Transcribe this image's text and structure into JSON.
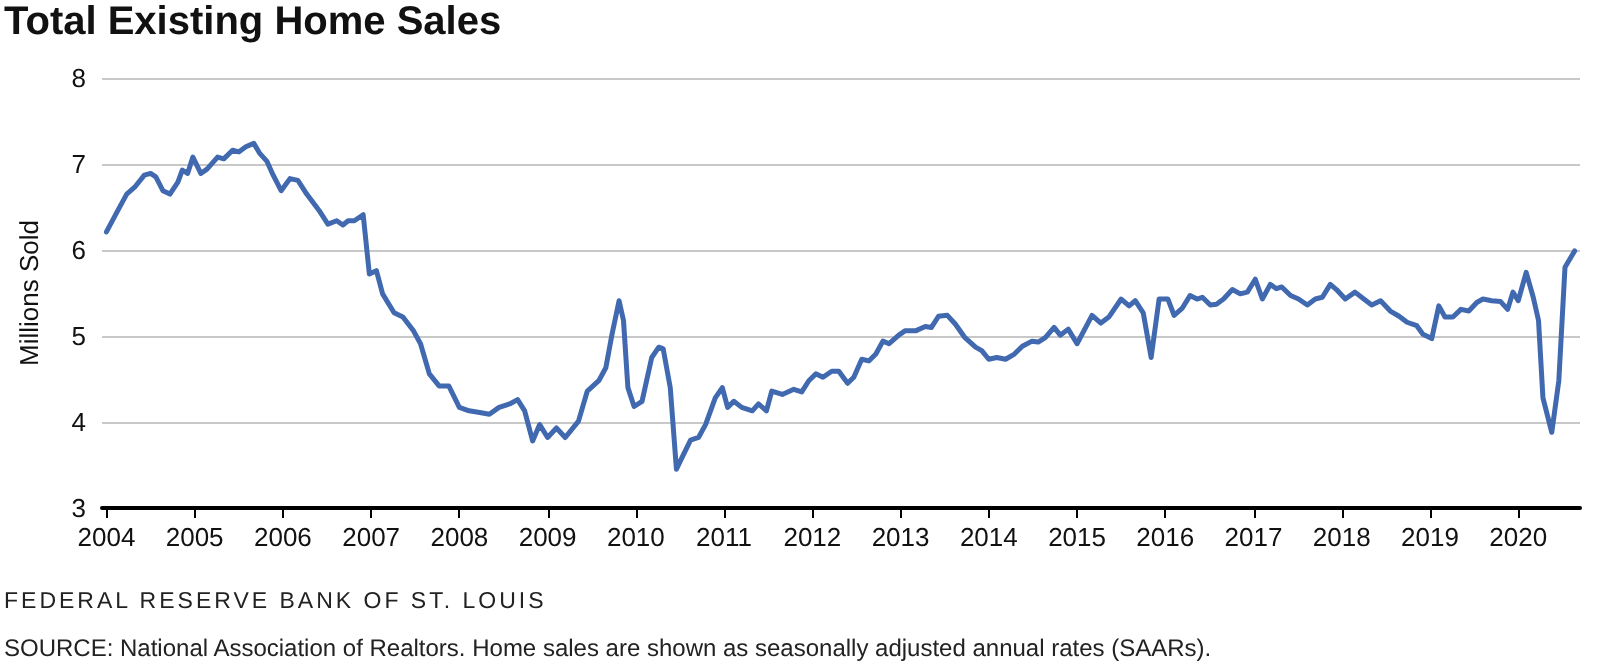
{
  "chart_data": {
    "type": "line",
    "title": "Total Existing Home Sales",
    "ylabel": "Millions Sold",
    "annotations": [
      "FEDERAL RESERVE BANK OF ST. LOUIS",
      "SOURCE: National Association of Realtors. Home sales are shown as seasonally adjusted annual rates (SAARs)."
    ],
    "xlim": [
      2003.95,
      2020.7
    ],
    "xticks": [
      2004,
      2005,
      2006,
      2007,
      2008,
      2009,
      2010,
      2011,
      2012,
      2013,
      2014,
      2015,
      2016,
      2017,
      2018,
      2019,
      2020
    ],
    "ylim": [
      3,
      8
    ],
    "yticks": [
      3,
      4,
      5,
      6,
      7,
      8
    ],
    "grid": "y",
    "marker": "none",
    "line_style": "solid",
    "series": [
      {
        "color": "#4169b0",
        "x": [
          2004.0,
          2004.13,
          2004.23,
          2004.32,
          2004.43,
          2004.5,
          2004.56,
          2004.64,
          2004.72,
          2004.81,
          2004.86,
          2004.92,
          2004.98,
          2005.07,
          2005.14,
          2005.26,
          2005.33,
          2005.43,
          2005.5,
          2005.58,
          2005.67,
          2005.74,
          2005.82,
          2005.89,
          2005.98,
          2006.08,
          2006.17,
          2006.27,
          2006.41,
          2006.51,
          2006.61,
          2006.68,
          2006.74,
          2006.81,
          2006.91,
          2006.98,
          2007.06,
          2007.13,
          2007.26,
          2007.36,
          2007.48,
          2007.56,
          2007.66,
          2007.77,
          2007.88,
          2008.0,
          2008.11,
          2008.23,
          2008.34,
          2008.45,
          2008.57,
          2008.66,
          2008.74,
          2008.83,
          2008.91,
          2009.0,
          2009.1,
          2009.2,
          2009.35,
          2009.45,
          2009.58,
          2009.66,
          2009.73,
          2009.81,
          2009.86,
          2009.91,
          2009.98,
          2010.07,
          2010.18,
          2010.26,
          2010.31,
          2010.39,
          2010.46,
          2010.52,
          2010.62,
          2010.71,
          2010.79,
          2010.9,
          2010.98,
          2011.04,
          2011.11,
          2011.2,
          2011.32,
          2011.39,
          2011.48,
          2011.54,
          2011.66,
          2011.79,
          2011.88,
          2011.96,
          2012.04,
          2012.12,
          2012.22,
          2012.3,
          2012.4,
          2012.47,
          2012.56,
          2012.64,
          2012.72,
          2012.8,
          2012.87,
          2012.98,
          2013.05,
          2013.17,
          2013.28,
          2013.35,
          2013.43,
          2013.53,
          2013.62,
          2013.73,
          2013.85,
          2013.92,
          2014.0,
          2014.09,
          2014.19,
          2014.29,
          2014.38,
          2014.49,
          2014.56,
          2014.64,
          2014.74,
          2014.81,
          2014.9,
          2015.0,
          2015.17,
          2015.27,
          2015.36,
          2015.5,
          2015.59,
          2015.66,
          2015.75,
          2015.84,
          2015.93,
          2016.03,
          2016.1,
          2016.19,
          2016.28,
          2016.36,
          2016.42,
          2016.51,
          2016.58,
          2016.66,
          2016.76,
          2016.85,
          2016.93,
          2017.02,
          2017.1,
          2017.19,
          2017.26,
          2017.32,
          2017.42,
          2017.51,
          2017.61,
          2017.7,
          2017.78,
          2017.87,
          2017.94,
          2018.04,
          2018.15,
          2018.25,
          2018.34,
          2018.44,
          2018.55,
          2018.65,
          2018.74,
          2018.85,
          2018.92,
          2019.02,
          2019.1,
          2019.17,
          2019.26,
          2019.35,
          2019.44,
          2019.53,
          2019.6,
          2019.7,
          2019.8,
          2019.88,
          2019.94,
          2020.0,
          2020.09,
          2020.17,
          2020.23,
          2020.28,
          2020.38,
          2020.46,
          2020.53,
          2020.64
        ],
        "values": [
          6.21,
          6.46,
          6.65,
          6.73,
          6.87,
          6.89,
          6.85,
          6.69,
          6.65,
          6.79,
          6.93,
          6.89,
          7.08,
          6.89,
          6.94,
          7.08,
          7.06,
          7.16,
          7.14,
          7.2,
          7.24,
          7.12,
          7.03,
          6.87,
          6.69,
          6.83,
          6.81,
          6.65,
          6.46,
          6.3,
          6.34,
          6.29,
          6.34,
          6.34,
          6.41,
          5.72,
          5.76,
          5.49,
          5.27,
          5.22,
          5.06,
          4.91,
          4.56,
          4.42,
          4.42,
          4.17,
          4.13,
          4.11,
          4.09,
          4.17,
          4.21,
          4.26,
          4.13,
          3.78,
          3.97,
          3.82,
          3.93,
          3.82,
          4.01,
          4.36,
          4.48,
          4.63,
          5.02,
          5.41,
          5.18,
          4.4,
          4.18,
          4.24,
          4.75,
          4.87,
          4.85,
          4.4,
          3.45,
          3.58,
          3.79,
          3.82,
          3.97,
          4.28,
          4.4,
          4.17,
          4.24,
          4.17,
          4.13,
          4.21,
          4.13,
          4.36,
          4.32,
          4.38,
          4.35,
          4.48,
          4.56,
          4.52,
          4.59,
          4.59,
          4.45,
          4.52,
          4.73,
          4.71,
          4.79,
          4.94,
          4.91,
          5.01,
          5.06,
          5.06,
          5.11,
          5.1,
          5.23,
          5.24,
          5.14,
          4.98,
          4.87,
          4.83,
          4.73,
          4.75,
          4.73,
          4.79,
          4.88,
          4.94,
          4.93,
          4.98,
          5.1,
          5.01,
          5.08,
          4.91,
          5.24,
          5.15,
          5.22,
          5.43,
          5.35,
          5.41,
          5.27,
          4.75,
          5.43,
          5.43,
          5.24,
          5.32,
          5.47,
          5.43,
          5.45,
          5.36,
          5.37,
          5.43,
          5.54,
          5.49,
          5.51,
          5.66,
          5.43,
          5.6,
          5.55,
          5.57,
          5.47,
          5.43,
          5.36,
          5.43,
          5.45,
          5.6,
          5.54,
          5.43,
          5.51,
          5.43,
          5.36,
          5.41,
          5.29,
          5.23,
          5.16,
          5.12,
          5.02,
          4.97,
          5.35,
          5.22,
          5.22,
          5.31,
          5.29,
          5.39,
          5.43,
          5.41,
          5.4,
          5.31,
          5.51,
          5.41,
          5.74,
          5.45,
          5.18,
          4.28,
          3.88,
          4.48,
          5.8,
          5.99
        ]
      }
    ]
  }
}
